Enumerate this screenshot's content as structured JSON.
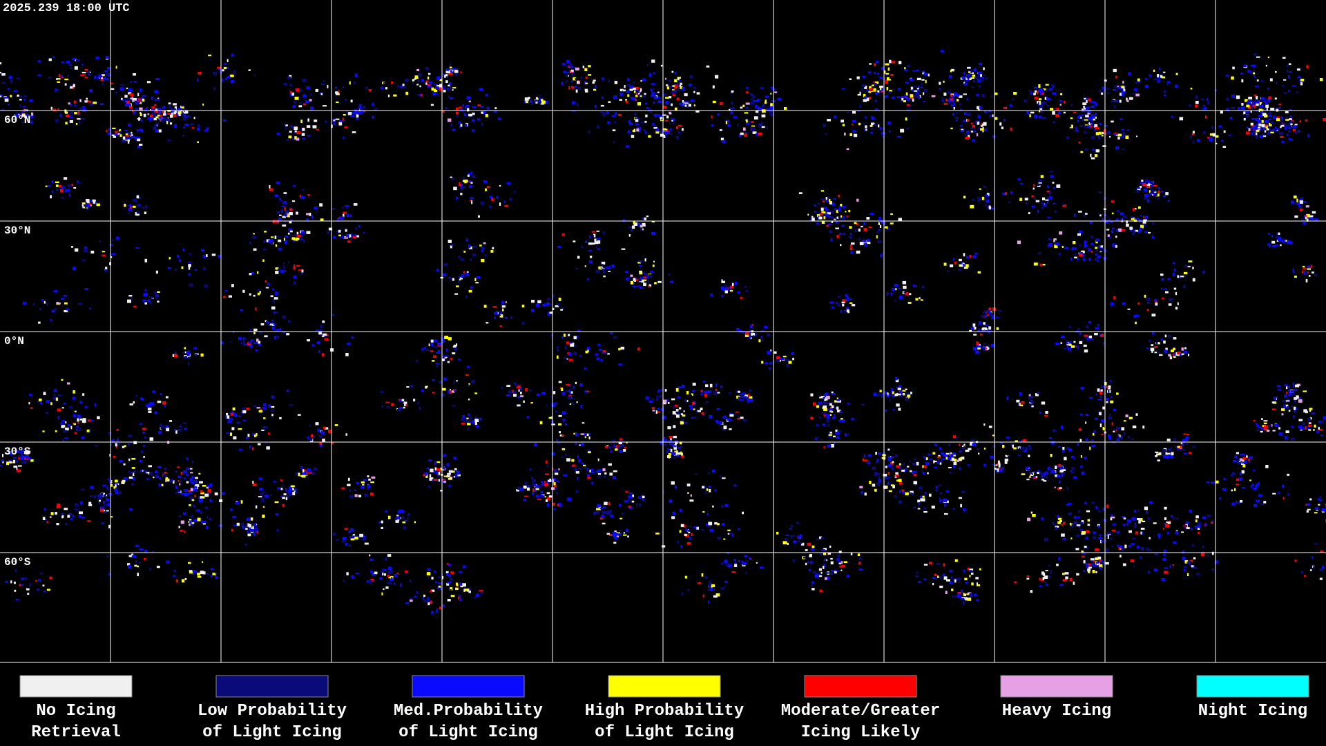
{
  "header": {
    "title": "2025.239 18:00 UTC"
  },
  "latitude_labels": [
    "60°N",
    "30°N",
    "0°N",
    "30°S",
    "60°S"
  ],
  "legend": {
    "items": [
      {
        "color": "#f0f0f0",
        "lines": [
          "No Icing",
          "Retrieval"
        ]
      },
      {
        "color": "#0a0a78",
        "lines": [
          "Low Probability",
          "of Light Icing"
        ]
      },
      {
        "color": "#0a0aff",
        "lines": [
          "Med.Probability",
          "of Light Icing"
        ]
      },
      {
        "color": "#ffff00",
        "lines": [
          "High Probability",
          "of Light Icing"
        ]
      },
      {
        "color": "#ff0000",
        "lines": [
          "Moderate/Greater",
          "Icing Likely"
        ]
      },
      {
        "color": "#e6a0e6",
        "lines": [
          "Heavy Icing"
        ]
      },
      {
        "color": "#00ffff",
        "lines": [
          "Night Icing"
        ]
      }
    ]
  }
}
